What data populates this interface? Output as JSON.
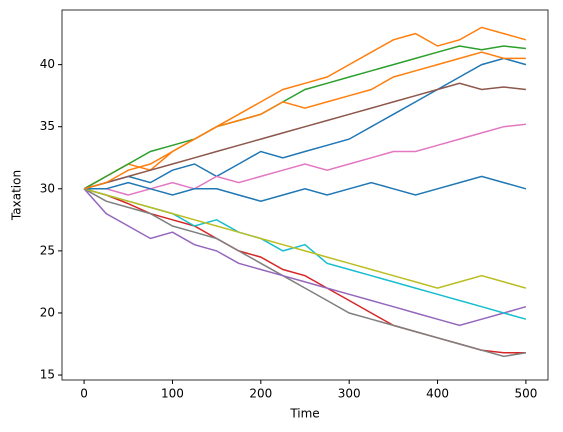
{
  "chart_data": {
    "type": "line",
    "x_label": "Time",
    "y_label": "Taxation",
    "x": [
      0,
      25,
      50,
      75,
      100,
      125,
      150,
      175,
      200,
      225,
      250,
      275,
      300,
      325,
      350,
      375,
      400,
      425,
      450,
      475,
      500
    ],
    "xlim": [
      -25,
      525
    ],
    "xticks": [
      0,
      100,
      200,
      300,
      400,
      500
    ],
    "ylim": [
      14.6,
      44.4
    ],
    "yticks": [
      15,
      20,
      25,
      30,
      35,
      40
    ],
    "series": [
      {
        "color": "#ff7f0e",
        "values": [
          30,
          31,
          32,
          31.5,
          33,
          34,
          35,
          36,
          37,
          38,
          38.5,
          39,
          40,
          41,
          42,
          42.5,
          41.5,
          42,
          43,
          42.5,
          42
        ]
      },
      {
        "color": "#d62728",
        "values": [
          30,
          29.5,
          28.8,
          28,
          27.5,
          27,
          26,
          25,
          24.5,
          23.5,
          23,
          22,
          21,
          20,
          19,
          18.5,
          18,
          17.5,
          17,
          16.8,
          16.8
        ]
      },
      {
        "color": "#7f7f7f",
        "values": [
          30,
          29,
          28.5,
          28,
          27,
          26.5,
          26,
          25,
          24,
          23,
          22,
          21,
          20,
          19.5,
          19,
          18.5,
          18,
          17.5,
          17,
          16.5,
          16.8
        ]
      },
      {
        "color": "#2ca02c",
        "values": [
          30,
          31,
          32,
          33,
          33.5,
          34,
          35,
          35.5,
          36,
          37,
          38,
          38.5,
          39,
          39.5,
          40,
          40.5,
          41,
          41.5,
          41.2,
          41.5,
          41.3
        ]
      },
      {
        "color": "#1f77b4",
        "values": [
          30,
          30.5,
          31,
          30.5,
          31.5,
          32,
          31,
          32,
          33,
          32.5,
          33,
          33.5,
          34,
          35,
          36,
          37,
          38,
          39,
          40,
          40.5,
          40
        ]
      },
      {
        "color": "#9467bd",
        "values": [
          30,
          28,
          27,
          26,
          26.5,
          25.5,
          25,
          24,
          23.5,
          23,
          22.5,
          22,
          21.5,
          21,
          20.5,
          20,
          19.5,
          19,
          19.5,
          20,
          20.5
        ]
      },
      {
        "color": "#17becf",
        "values": [
          30,
          29.5,
          29,
          28.5,
          28,
          27,
          27.5,
          26.5,
          26,
          25,
          25.5,
          24,
          23.5,
          23,
          22.5,
          22,
          21.5,
          21,
          20.5,
          20,
          19.5
        ]
      },
      {
        "color": "#8c564b",
        "values": [
          30,
          30.5,
          31,
          31.5,
          32,
          32.5,
          33,
          33.5,
          34,
          34.5,
          35,
          35.5,
          36,
          36.5,
          37,
          37.5,
          38,
          38.5,
          38,
          38.2,
          38
        ]
      },
      {
        "color": "#e377c2",
        "values": [
          30,
          30,
          29.5,
          30,
          30.5,
          30,
          31,
          30.5,
          31,
          31.5,
          32,
          31.5,
          32,
          32.5,
          33,
          33,
          33.5,
          34,
          34.5,
          35,
          35.2
        ]
      },
      {
        "color": "#bcbd22",
        "values": [
          30,
          29.5,
          29,
          28.5,
          28,
          27.5,
          27,
          26.5,
          26,
          25.5,
          25,
          24.5,
          24,
          23.5,
          23,
          22.5,
          22,
          22.5,
          23,
          22.5,
          22
        ]
      },
      {
        "color": "#1f77b4",
        "values": [
          30,
          30,
          30.5,
          30,
          29.5,
          30,
          30,
          29.5,
          29,
          29.5,
          30,
          29.5,
          30,
          30.5,
          30,
          29.5,
          30,
          30.5,
          31,
          30.5,
          30
        ]
      },
      {
        "color": "#ff7f0e",
        "values": [
          30,
          30.5,
          31.5,
          32,
          33,
          34,
          35,
          35.5,
          36,
          37,
          36.5,
          37,
          37.5,
          38,
          39,
          39.5,
          40,
          40.5,
          41,
          40.5,
          40.5
        ]
      }
    ]
  }
}
